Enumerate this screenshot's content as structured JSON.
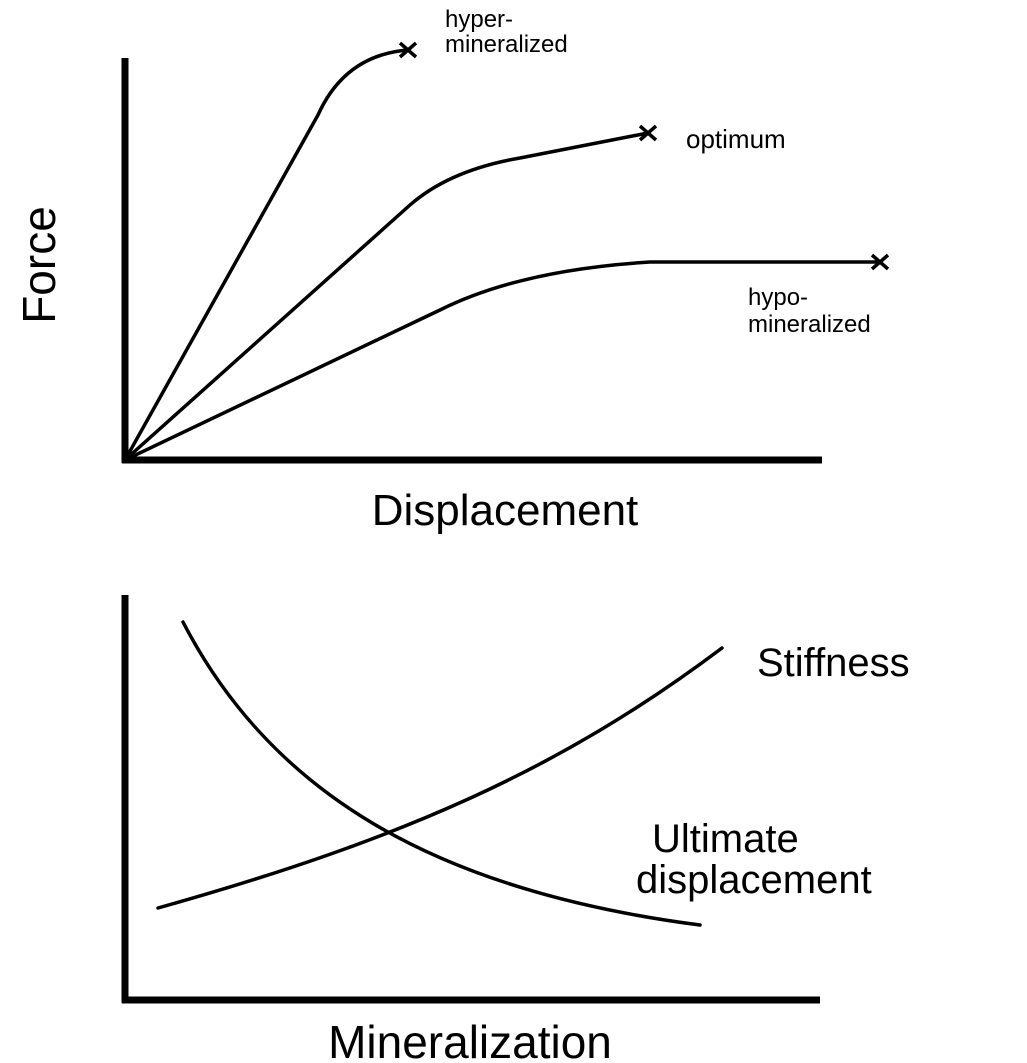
{
  "top_panel": {
    "y_axis_label": "Force",
    "x_axis_label": "Displacement",
    "curves": [
      {
        "label": [
          "hyper-",
          "mineralized"
        ]
      },
      {
        "label": [
          "optimum"
        ]
      },
      {
        "label": [
          "hypo-",
          "mineralized"
        ]
      }
    ]
  },
  "bottom_panel": {
    "x_axis_label": "Mineralization",
    "curves": [
      {
        "label": [
          "Stiffness"
        ]
      },
      {
        "label": [
          "Ultimate",
          "displacement"
        ]
      }
    ]
  }
}
